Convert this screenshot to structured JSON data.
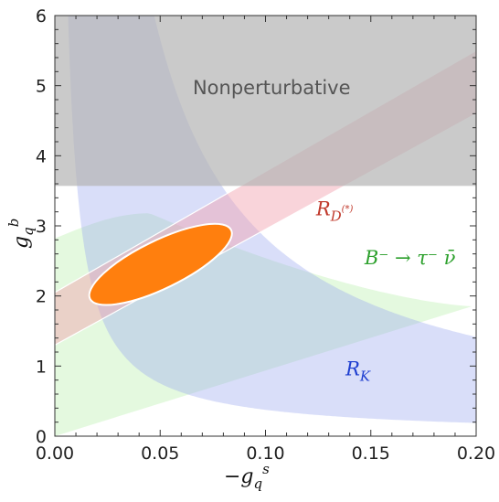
{
  "chart_data": {
    "type": "scatter",
    "xlabel": "−g_q^s",
    "ylabel": "g_q^b",
    "xlim": [
      0.0,
      0.2
    ],
    "ylim": [
      0,
      6
    ],
    "x_ticks": [
      "0.00",
      "0.05",
      "0.10",
      "0.15",
      "0.20"
    ],
    "y_ticks": [
      "0",
      "1",
      "2",
      "3",
      "4",
      "5",
      "6"
    ],
    "regions": [
      {
        "name": "Nonperturbative",
        "label": "Nonperturbative",
        "color": "#bdbdbd",
        "y_min": 3.57
      },
      {
        "name": "R_D(*)",
        "label_main": "R",
        "label_sub": "D",
        "label_sup": "(*)",
        "color": "#f3b7c0",
        "band": {
          "lower_at_x0": 1.3,
          "upper_at_x0": 2.05,
          "lower_at_x020": 4.6,
          "upper_at_x020": 5.5
        }
      },
      {
        "name": "B- to tau nu",
        "label": "B⁻ → τ⁻ ν̄",
        "color": "#d9f5d0",
        "peak": {
          "x": 0.045,
          "y": 3.18
        }
      },
      {
        "name": "R_K",
        "label_main": "R",
        "label_sub": "K",
        "color": "#b9c3f5",
        "lower_curve": "g_b ≈ 0.0376 / (−g_s)",
        "upper_curve": "g_b ≈ 0.283 / (−g_s)"
      }
    ],
    "best_fit": {
      "name": "combined fit",
      "color": "#ff7f0e",
      "center": {
        "x": 0.0502,
        "y": 2.45
      },
      "x_range": [
        0.016,
        0.085
      ],
      "y_range": [
        1.9,
        3.0
      ]
    },
    "grid": false
  }
}
